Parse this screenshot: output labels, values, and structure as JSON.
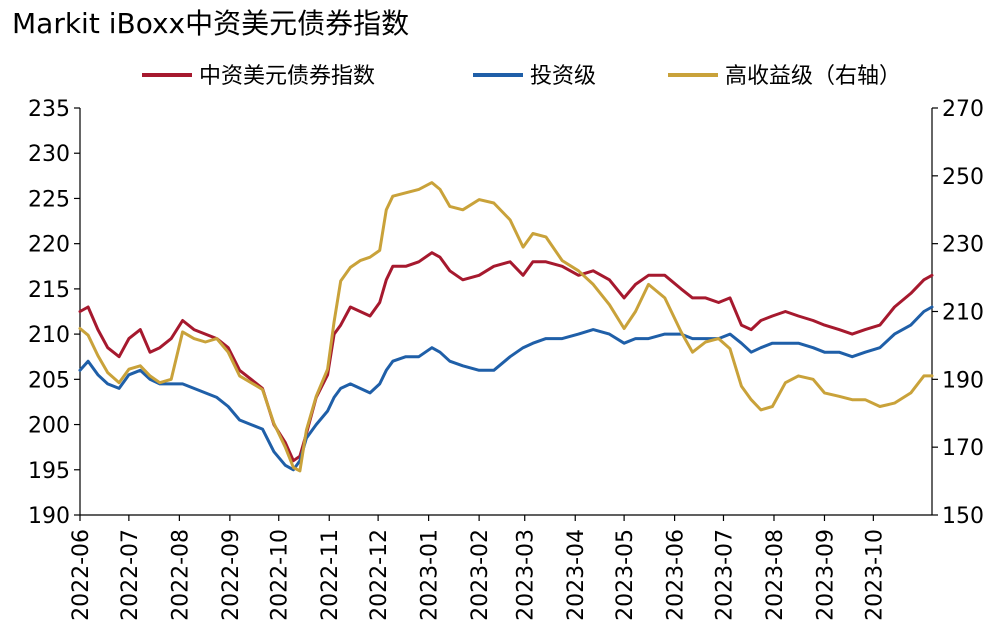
{
  "chart_data": {
    "type": "line",
    "title": "Markit iBoxx中资美元债券指数",
    "legend_position": "top",
    "grid": false,
    "x_ticks": [
      "2022-06",
      "2022-07",
      "2022-08",
      "2022-09",
      "2022-10",
      "2022-11",
      "2022-12",
      "2023-01",
      "2023-02",
      "2023-03",
      "2023-04",
      "2023-05",
      "2023-06",
      "2023-07",
      "2023-08",
      "2023-09",
      "2023-10"
    ],
    "x_range": [
      "2022-06-01",
      "2023-11-06"
    ],
    "y_left": {
      "ylim": [
        190,
        235
      ],
      "ticks": [
        190,
        195,
        200,
        205,
        210,
        215,
        220,
        225,
        230,
        235
      ]
    },
    "y_right": {
      "ylim": [
        150,
        270
      ],
      "ticks": [
        150,
        170,
        190,
        210,
        230,
        250,
        270
      ]
    },
    "series": [
      {
        "name": "中资美元债券指数",
        "color": "#a6192e",
        "axis": "left",
        "points": [
          [
            "2022-06-01",
            212.5
          ],
          [
            "2022-06-06",
            213.0
          ],
          [
            "2022-06-12",
            210.5
          ],
          [
            "2022-06-18",
            208.5
          ],
          [
            "2022-06-25",
            207.5
          ],
          [
            "2022-07-01",
            209.5
          ],
          [
            "2022-07-08",
            210.5
          ],
          [
            "2022-07-14",
            208.0
          ],
          [
            "2022-07-20",
            208.5
          ],
          [
            "2022-07-27",
            209.5
          ],
          [
            "2022-08-03",
            211.5
          ],
          [
            "2022-08-10",
            210.5
          ],
          [
            "2022-08-17",
            210.0
          ],
          [
            "2022-08-24",
            209.5
          ],
          [
            "2022-08-31",
            208.5
          ],
          [
            "2022-09-07",
            206.0
          ],
          [
            "2022-09-14",
            205.0
          ],
          [
            "2022-09-21",
            204.0
          ],
          [
            "2022-09-28",
            200.0
          ],
          [
            "2022-10-05",
            198.0
          ],
          [
            "2022-10-10",
            196.0
          ],
          [
            "2022-10-14",
            196.5
          ],
          [
            "2022-10-18",
            199.0
          ],
          [
            "2022-10-24",
            203.0
          ],
          [
            "2022-10-31",
            205.5
          ],
          [
            "2022-11-04",
            210.0
          ],
          [
            "2022-11-08",
            211.0
          ],
          [
            "2022-11-14",
            213.0
          ],
          [
            "2022-11-20",
            212.5
          ],
          [
            "2022-11-26",
            212.0
          ],
          [
            "2022-12-02",
            213.5
          ],
          [
            "2022-12-06",
            216.0
          ],
          [
            "2022-12-10",
            217.5
          ],
          [
            "2022-12-18",
            217.5
          ],
          [
            "2022-12-26",
            218.0
          ],
          [
            "2023-01-03",
            219.0
          ],
          [
            "2023-01-08",
            218.5
          ],
          [
            "2023-01-14",
            217.0
          ],
          [
            "2023-01-22",
            216.0
          ],
          [
            "2023-02-01",
            216.5
          ],
          [
            "2023-02-10",
            217.5
          ],
          [
            "2023-02-20",
            218.0
          ],
          [
            "2023-02-28",
            216.5
          ],
          [
            "2023-03-06",
            218.0
          ],
          [
            "2023-03-14",
            218.0
          ],
          [
            "2023-03-24",
            217.5
          ],
          [
            "2023-04-03",
            216.5
          ],
          [
            "2023-04-12",
            217.0
          ],
          [
            "2023-04-22",
            216.0
          ],
          [
            "2023-05-01",
            214.0
          ],
          [
            "2023-05-08",
            215.5
          ],
          [
            "2023-05-16",
            216.5
          ],
          [
            "2023-05-26",
            216.5
          ],
          [
            "2023-06-05",
            215.0
          ],
          [
            "2023-06-12",
            214.0
          ],
          [
            "2023-06-20",
            214.0
          ],
          [
            "2023-06-28",
            213.5
          ],
          [
            "2023-07-05",
            214.0
          ],
          [
            "2023-07-12",
            211.0
          ],
          [
            "2023-07-18",
            210.5
          ],
          [
            "2023-07-24",
            211.5
          ],
          [
            "2023-07-31",
            212.0
          ],
          [
            "2023-08-08",
            212.5
          ],
          [
            "2023-08-16",
            212.0
          ],
          [
            "2023-08-25",
            211.5
          ],
          [
            "2023-09-01",
            211.0
          ],
          [
            "2023-09-10",
            210.5
          ],
          [
            "2023-09-18",
            210.0
          ],
          [
            "2023-09-26",
            210.5
          ],
          [
            "2023-10-05",
            211.0
          ],
          [
            "2023-10-14",
            213.0
          ],
          [
            "2023-10-24",
            214.5
          ],
          [
            "2023-11-01",
            216.0
          ],
          [
            "2023-11-06",
            216.5
          ]
        ]
      },
      {
        "name": "投资级",
        "color": "#1f5fa8",
        "axis": "left",
        "points": [
          [
            "2022-06-01",
            206.0
          ],
          [
            "2022-06-06",
            207.0
          ],
          [
            "2022-06-12",
            205.5
          ],
          [
            "2022-06-18",
            204.5
          ],
          [
            "2022-06-25",
            204.0
          ],
          [
            "2022-07-01",
            205.5
          ],
          [
            "2022-07-08",
            206.0
          ],
          [
            "2022-07-14",
            205.0
          ],
          [
            "2022-07-20",
            204.5
          ],
          [
            "2022-07-27",
            204.5
          ],
          [
            "2022-08-03",
            204.5
          ],
          [
            "2022-08-10",
            204.0
          ],
          [
            "2022-08-17",
            203.5
          ],
          [
            "2022-08-24",
            203.0
          ],
          [
            "2022-08-31",
            202.0
          ],
          [
            "2022-09-07",
            200.5
          ],
          [
            "2022-09-14",
            200.0
          ],
          [
            "2022-09-21",
            199.5
          ],
          [
            "2022-09-28",
            197.0
          ],
          [
            "2022-10-05",
            195.5
          ],
          [
            "2022-10-10",
            195.0
          ],
          [
            "2022-10-14",
            196.0
          ],
          [
            "2022-10-18",
            198.5
          ],
          [
            "2022-10-24",
            200.0
          ],
          [
            "2022-10-31",
            201.5
          ],
          [
            "2022-11-04",
            203.0
          ],
          [
            "2022-11-08",
            204.0
          ],
          [
            "2022-11-14",
            204.5
          ],
          [
            "2022-11-20",
            204.0
          ],
          [
            "2022-11-26",
            203.5
          ],
          [
            "2022-12-02",
            204.5
          ],
          [
            "2022-12-06",
            206.0
          ],
          [
            "2022-12-10",
            207.0
          ],
          [
            "2022-12-18",
            207.5
          ],
          [
            "2022-12-26",
            207.5
          ],
          [
            "2023-01-03",
            208.5
          ],
          [
            "2023-01-08",
            208.0
          ],
          [
            "2023-01-14",
            207.0
          ],
          [
            "2023-01-22",
            206.5
          ],
          [
            "2023-02-01",
            206.0
          ],
          [
            "2023-02-10",
            206.0
          ],
          [
            "2023-02-20",
            207.5
          ],
          [
            "2023-02-28",
            208.5
          ],
          [
            "2023-03-06",
            209.0
          ],
          [
            "2023-03-14",
            209.5
          ],
          [
            "2023-03-24",
            209.5
          ],
          [
            "2023-04-03",
            210.0
          ],
          [
            "2023-04-12",
            210.5
          ],
          [
            "2023-04-22",
            210.0
          ],
          [
            "2023-05-01",
            209.0
          ],
          [
            "2023-05-08",
            209.5
          ],
          [
            "2023-05-16",
            209.5
          ],
          [
            "2023-05-26",
            210.0
          ],
          [
            "2023-06-05",
            210.0
          ],
          [
            "2023-06-12",
            209.5
          ],
          [
            "2023-06-20",
            209.5
          ],
          [
            "2023-06-28",
            209.5
          ],
          [
            "2023-07-05",
            210.0
          ],
          [
            "2023-07-12",
            209.0
          ],
          [
            "2023-07-18",
            208.0
          ],
          [
            "2023-07-24",
            208.5
          ],
          [
            "2023-07-31",
            209.0
          ],
          [
            "2023-08-08",
            209.0
          ],
          [
            "2023-08-16",
            209.0
          ],
          [
            "2023-08-25",
            208.5
          ],
          [
            "2023-09-01",
            208.0
          ],
          [
            "2023-09-10",
            208.0
          ],
          [
            "2023-09-18",
            207.5
          ],
          [
            "2023-09-26",
            208.0
          ],
          [
            "2023-10-05",
            208.5
          ],
          [
            "2023-10-14",
            210.0
          ],
          [
            "2023-10-24",
            211.0
          ],
          [
            "2023-11-01",
            212.5
          ],
          [
            "2023-11-06",
            213.0
          ]
        ]
      },
      {
        "name": "高收益级（右轴）",
        "color": "#c9a23a",
        "axis": "right",
        "points": [
          [
            "2022-06-01",
            205.0
          ],
          [
            "2022-06-06",
            203.0
          ],
          [
            "2022-06-12",
            197.0
          ],
          [
            "2022-06-18",
            192.0
          ],
          [
            "2022-06-25",
            189.0
          ],
          [
            "2022-07-01",
            193.0
          ],
          [
            "2022-07-08",
            194.0
          ],
          [
            "2022-07-14",
            191.0
          ],
          [
            "2022-07-20",
            189.0
          ],
          [
            "2022-07-27",
            190.0
          ],
          [
            "2022-08-03",
            204.0
          ],
          [
            "2022-08-10",
            202.0
          ],
          [
            "2022-08-17",
            201.0
          ],
          [
            "2022-08-24",
            202.0
          ],
          [
            "2022-08-31",
            198.0
          ],
          [
            "2022-09-07",
            191.0
          ],
          [
            "2022-09-14",
            189.0
          ],
          [
            "2022-09-21",
            187.0
          ],
          [
            "2022-09-28",
            177.0
          ],
          [
            "2022-10-05",
            170.0
          ],
          [
            "2022-10-10",
            164.0
          ],
          [
            "2022-10-14",
            163.0
          ],
          [
            "2022-10-18",
            175.0
          ],
          [
            "2022-10-24",
            185.0
          ],
          [
            "2022-10-31",
            193.0
          ],
          [
            "2022-11-04",
            207.0
          ],
          [
            "2022-11-08",
            219.0
          ],
          [
            "2022-11-14",
            223.0
          ],
          [
            "2022-11-20",
            225.0
          ],
          [
            "2022-11-26",
            226.0
          ],
          [
            "2022-12-02",
            228.0
          ],
          [
            "2022-12-06",
            240.0
          ],
          [
            "2022-12-10",
            244.0
          ],
          [
            "2022-12-18",
            245.0
          ],
          [
            "2022-12-26",
            246.0
          ],
          [
            "2023-01-03",
            248.0
          ],
          [
            "2023-01-08",
            246.0
          ],
          [
            "2023-01-14",
            241.0
          ],
          [
            "2023-01-22",
            240.0
          ],
          [
            "2023-02-01",
            243.0
          ],
          [
            "2023-02-10",
            242.0
          ],
          [
            "2023-02-20",
            237.0
          ],
          [
            "2023-02-28",
            229.0
          ],
          [
            "2023-03-06",
            233.0
          ],
          [
            "2023-03-14",
            232.0
          ],
          [
            "2023-03-24",
            225.0
          ],
          [
            "2023-04-03",
            222.0
          ],
          [
            "2023-04-12",
            218.0
          ],
          [
            "2023-04-22",
            212.0
          ],
          [
            "2023-05-01",
            205.0
          ],
          [
            "2023-05-08",
            210.0
          ],
          [
            "2023-05-16",
            218.0
          ],
          [
            "2023-05-26",
            214.0
          ],
          [
            "2023-06-05",
            204.0
          ],
          [
            "2023-06-12",
            198.0
          ],
          [
            "2023-06-20",
            201.0
          ],
          [
            "2023-06-28",
            202.0
          ],
          [
            "2023-07-05",
            199.0
          ],
          [
            "2023-07-12",
            188.0
          ],
          [
            "2023-07-18",
            184.0
          ],
          [
            "2023-07-24",
            181.0
          ],
          [
            "2023-07-31",
            182.0
          ],
          [
            "2023-08-08",
            189.0
          ],
          [
            "2023-08-16",
            191.0
          ],
          [
            "2023-08-25",
            190.0
          ],
          [
            "2023-09-01",
            186.0
          ],
          [
            "2023-09-10",
            185.0
          ],
          [
            "2023-09-18",
            184.0
          ],
          [
            "2023-09-26",
            184.0
          ],
          [
            "2023-10-05",
            182.0
          ],
          [
            "2023-10-14",
            183.0
          ],
          [
            "2023-10-24",
            186.0
          ],
          [
            "2023-11-01",
            191.0
          ],
          [
            "2023-11-06",
            191.0
          ]
        ]
      }
    ]
  }
}
